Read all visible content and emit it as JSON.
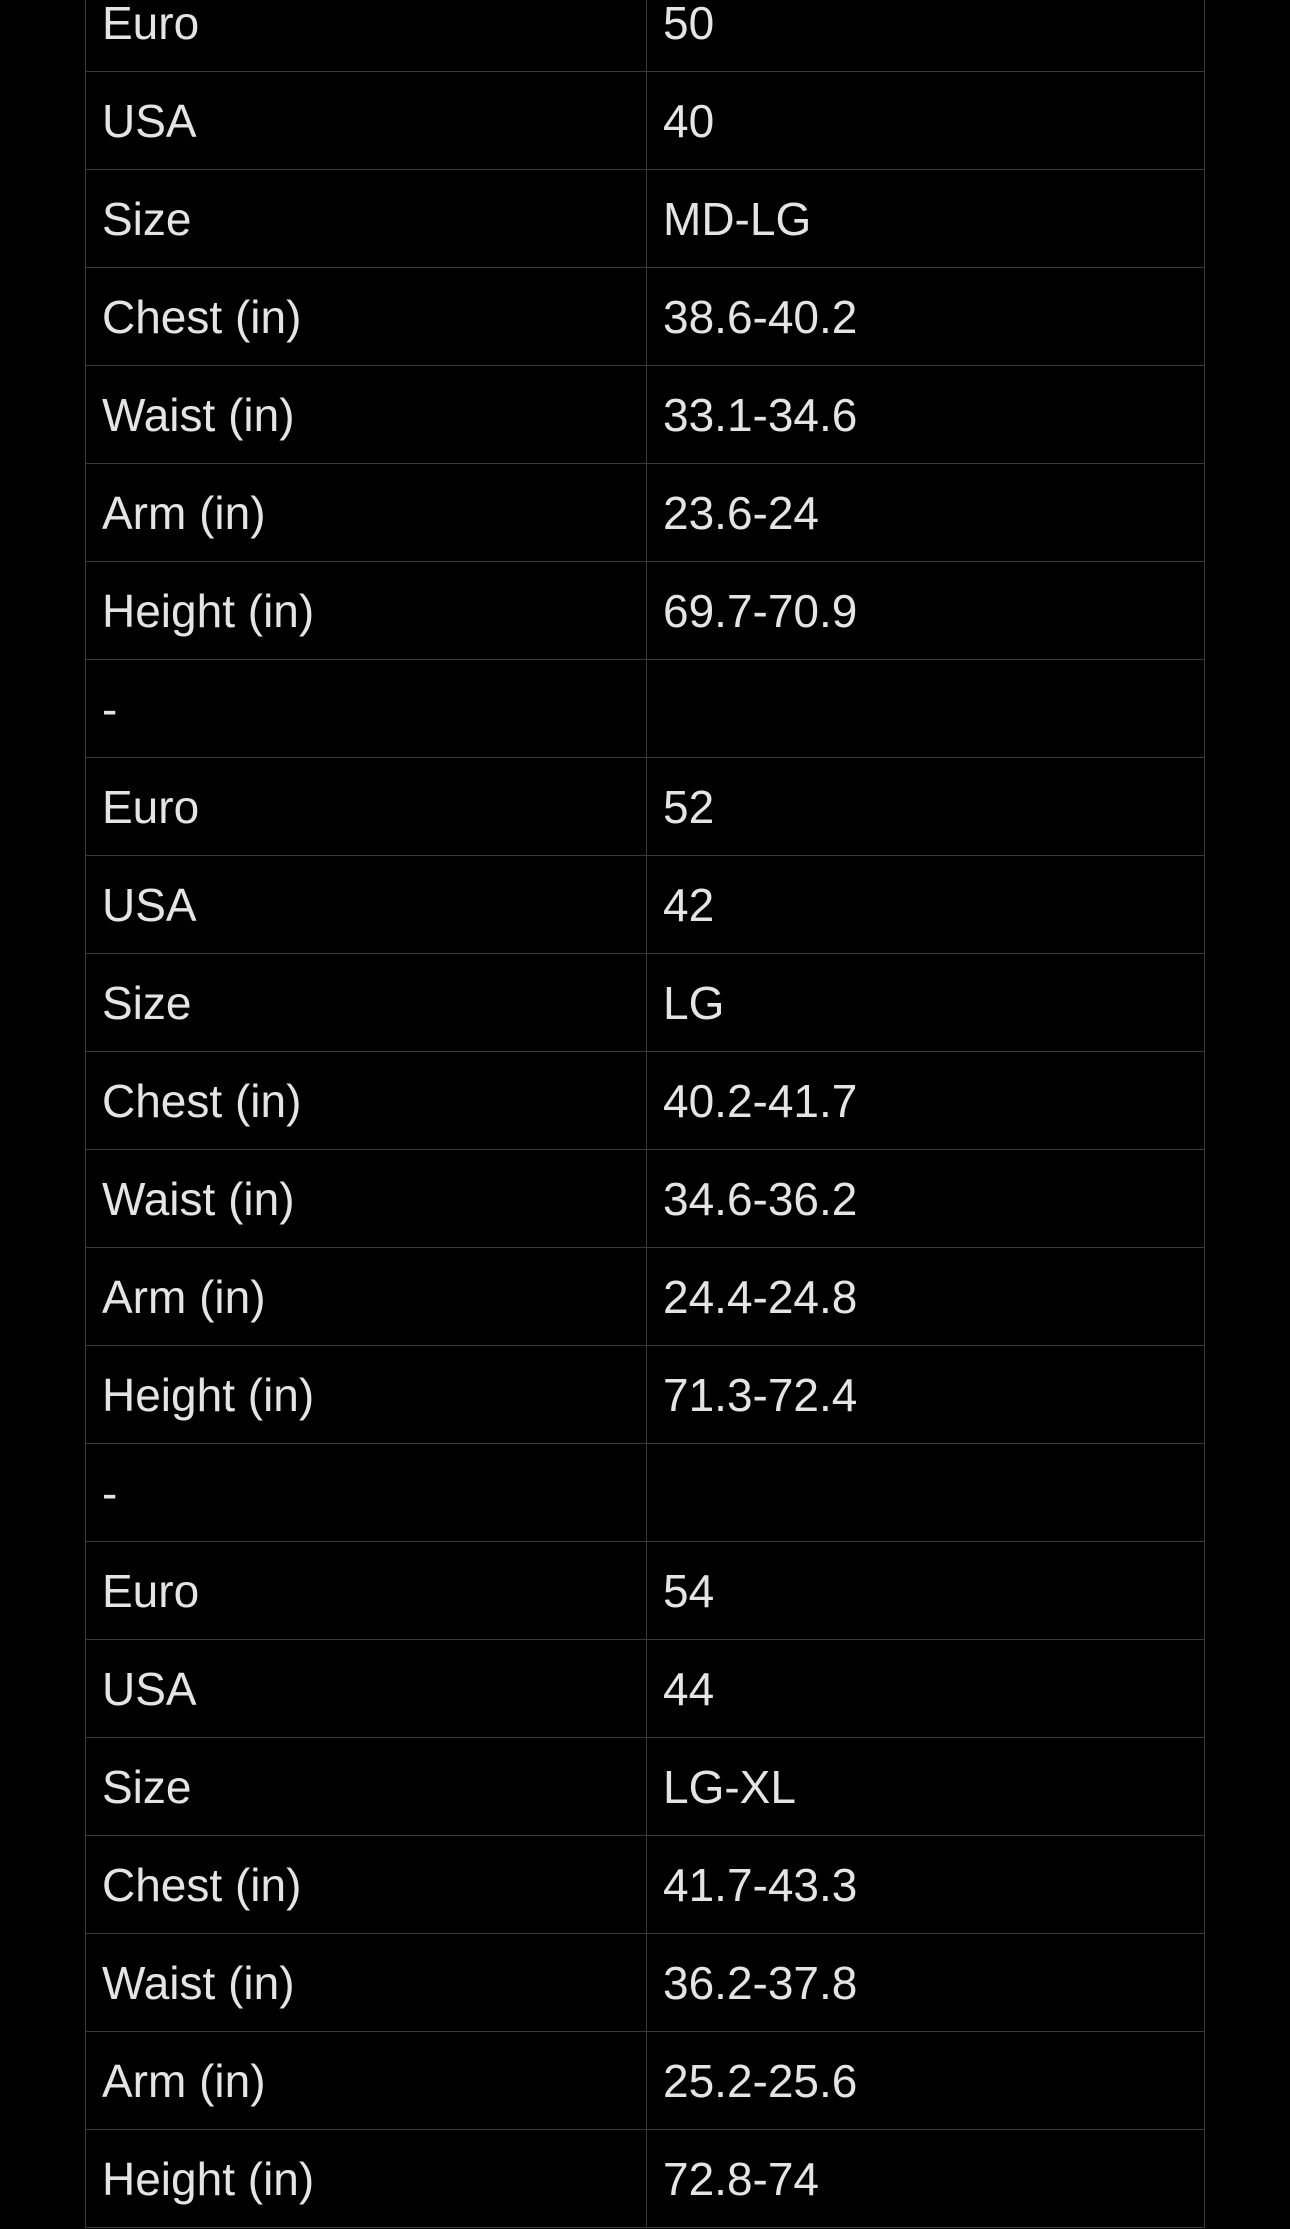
{
  "size_table": {
    "rows": [
      [
        "Euro",
        "50"
      ],
      [
        "USA",
        "40"
      ],
      [
        "Size",
        "MD-LG"
      ],
      [
        "Chest (in)",
        "38.6-40.2"
      ],
      [
        "Waist (in)",
        "33.1-34.6"
      ],
      [
        "Arm (in)",
        "23.6-24"
      ],
      [
        "Height (in)",
        "69.7-70.9"
      ],
      [
        "-",
        ""
      ],
      [
        "Euro",
        "52"
      ],
      [
        "USA",
        "42"
      ],
      [
        "Size",
        "LG"
      ],
      [
        "Chest (in)",
        "40.2-41.7"
      ],
      [
        "Waist (in)",
        "34.6-36.2"
      ],
      [
        "Arm (in)",
        "24.4-24.8"
      ],
      [
        "Height (in)",
        "71.3-72.4"
      ],
      [
        "-",
        ""
      ],
      [
        "Euro",
        "54"
      ],
      [
        "USA",
        "44"
      ],
      [
        "Size",
        "LG-XL"
      ],
      [
        "Chest (in)",
        "41.7-43.3"
      ],
      [
        "Waist (in)",
        "36.2-37.8"
      ],
      [
        "Arm (in)",
        "25.2-25.6"
      ],
      [
        "Height (in)",
        "72.8-74"
      ]
    ]
  }
}
